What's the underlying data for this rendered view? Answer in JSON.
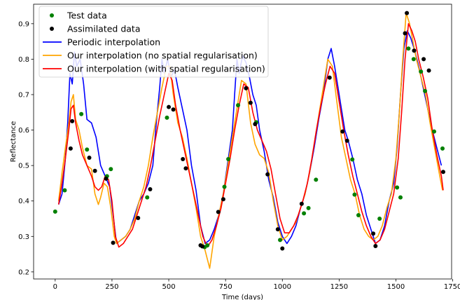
{
  "chart_data": {
    "type": "line",
    "xlabel": "Time (days)",
    "ylabel": "Reflectance",
    "xlim": [
      -95,
      1745
    ],
    "ylim": [
      0.18,
      0.955
    ],
    "xticks": [
      0,
      250,
      500,
      750,
      1000,
      1250,
      1500,
      1750
    ],
    "yticks": [
      0.2,
      0.3,
      0.4,
      0.5,
      0.6,
      0.7,
      0.8,
      0.9
    ],
    "xtick_labels": [
      "0",
      "250",
      "500",
      "750",
      "1000",
      "1250",
      "1500",
      "1750"
    ],
    "ytick_labels": [
      "0.2",
      "0.3",
      "0.4",
      "0.5",
      "0.6",
      "0.7",
      "0.8",
      "0.9"
    ],
    "legend_position": "top-left",
    "series": [
      {
        "name": "Test data",
        "kind": "scatter",
        "color": "#008000",
        "x": [
          0,
          42,
          115,
          140,
          228,
          245,
          405,
          492,
          658,
          670,
          745,
          762,
          805,
          885,
          990,
          1095,
          1115,
          1148,
          1308,
          1318,
          1335,
          1428,
          1505,
          1520,
          1555,
          1578,
          1610,
          1628,
          1668,
          1705
        ],
        "y": [
          0.37,
          0.43,
          0.645,
          0.545,
          0.47,
          0.49,
          0.41,
          0.635,
          0.27,
          0.275,
          0.44,
          0.518,
          0.67,
          0.622,
          0.29,
          0.365,
          0.38,
          0.46,
          0.517,
          0.418,
          0.36,
          0.35,
          0.438,
          0.41,
          0.83,
          0.8,
          0.765,
          0.71,
          0.596,
          0.548
        ]
      },
      {
        "name": "Assimilated data",
        "kind": "scatter",
        "color": "#000000",
        "x": [
          68,
          75,
          150,
          175,
          224,
          255,
          365,
          418,
          500,
          520,
          562,
          575,
          640,
          648,
          718,
          740,
          840,
          860,
          880,
          935,
          980,
          1000,
          1085,
          1208,
          1265,
          1285,
          1400,
          1410,
          1540,
          1548,
          1580,
          1622,
          1645,
          1708
        ],
        "y": [
          0.548,
          0.625,
          0.522,
          0.485,
          0.463,
          0.282,
          0.352,
          0.433,
          0.665,
          0.658,
          0.518,
          0.492,
          0.275,
          0.272,
          0.369,
          0.405,
          0.718,
          0.677,
          0.617,
          0.475,
          0.32,
          0.266,
          0.392,
          0.748,
          0.596,
          0.57,
          0.308,
          0.273,
          0.873,
          0.93,
          0.824,
          0.8,
          0.768,
          0.482
        ]
      },
      {
        "name": "Periodic interpolation",
        "kind": "line",
        "color": "#0000ff",
        "x": [
          15,
          30,
          45,
          55,
          65,
          75,
          85,
          95,
          110,
          125,
          140,
          160,
          180,
          200,
          220,
          240,
          255,
          270,
          290,
          310,
          330,
          350,
          370,
          390,
          410,
          430,
          445,
          460,
          470,
          480,
          495,
          510,
          525,
          540,
          560,
          580,
          600,
          620,
          640,
          660,
          680,
          700,
          720,
          740,
          760,
          780,
          790,
          800,
          810,
          825,
          840,
          855,
          870,
          885,
          900,
          920,
          940,
          960,
          980,
          1000,
          1020,
          1040,
          1060,
          1080,
          1100,
          1120,
          1140,
          1160,
          1180,
          1200,
          1215,
          1230,
          1245,
          1260,
          1275,
          1290,
          1310,
          1330,
          1350,
          1370,
          1390,
          1410,
          1430,
          1450,
          1470,
          1490,
          1505,
          1520,
          1535,
          1550,
          1565,
          1580,
          1600,
          1620,
          1640,
          1660,
          1680,
          1700
        ],
        "y": [
          0.39,
          0.42,
          0.52,
          0.62,
          0.76,
          0.73,
          0.82,
          0.78,
          0.8,
          0.73,
          0.63,
          0.62,
          0.58,
          0.5,
          0.47,
          0.44,
          0.36,
          0.28,
          0.29,
          0.3,
          0.32,
          0.36,
          0.4,
          0.42,
          0.45,
          0.5,
          0.62,
          0.72,
          0.8,
          0.76,
          0.8,
          0.75,
          0.77,
          0.72,
          0.66,
          0.6,
          0.5,
          0.43,
          0.33,
          0.28,
          0.29,
          0.32,
          0.36,
          0.42,
          0.51,
          0.6,
          0.7,
          0.8,
          0.76,
          0.81,
          0.79,
          0.75,
          0.7,
          0.67,
          0.6,
          0.54,
          0.46,
          0.41,
          0.34,
          0.3,
          0.28,
          0.3,
          0.33,
          0.38,
          0.42,
          0.48,
          0.55,
          0.63,
          0.7,
          0.8,
          0.83,
          0.78,
          0.72,
          0.66,
          0.6,
          0.57,
          0.52,
          0.46,
          0.42,
          0.36,
          0.32,
          0.28,
          0.29,
          0.33,
          0.4,
          0.45,
          0.55,
          0.7,
          0.83,
          0.88,
          0.86,
          0.83,
          0.78,
          0.72,
          0.66,
          0.6,
          0.55,
          0.5
        ]
      },
      {
        "name": "Our interpolation (no spatial regularisation)",
        "kind": "line",
        "color": "#ffa500",
        "x": [
          15,
          30,
          45,
          60,
          70,
          80,
          90,
          105,
          120,
          140,
          160,
          175,
          190,
          200,
          215,
          230,
          245,
          260,
          270,
          290,
          310,
          330,
          350,
          370,
          390,
          410,
          430,
          450,
          470,
          490,
          505,
          520,
          540,
          560,
          580,
          600,
          620,
          640,
          660,
          680,
          700,
          720,
          740,
          760,
          780,
          800,
          820,
          840,
          860,
          880,
          900,
          920,
          940,
          960,
          980,
          1000,
          1020,
          1040,
          1060,
          1080,
          1100,
          1120,
          1140,
          1160,
          1180,
          1200,
          1220,
          1240,
          1260,
          1280,
          1300,
          1320,
          1340,
          1360,
          1380,
          1400,
          1420,
          1440,
          1460,
          1480,
          1500,
          1515,
          1530,
          1545,
          1560,
          1575,
          1590,
          1610,
          1630,
          1650,
          1670,
          1690,
          1705
        ],
        "y": [
          0.4,
          0.48,
          0.55,
          0.62,
          0.68,
          0.7,
          0.63,
          0.6,
          0.55,
          0.5,
          0.49,
          0.42,
          0.39,
          0.41,
          0.45,
          0.44,
          0.38,
          0.3,
          0.28,
          0.29,
          0.3,
          0.32,
          0.35,
          0.4,
          0.44,
          0.5,
          0.58,
          0.65,
          0.72,
          0.78,
          0.78,
          0.7,
          0.62,
          0.58,
          0.52,
          0.45,
          0.38,
          0.3,
          0.26,
          0.21,
          0.3,
          0.36,
          0.42,
          0.5,
          0.58,
          0.66,
          0.74,
          0.73,
          0.62,
          0.56,
          0.53,
          0.52,
          0.48,
          0.4,
          0.33,
          0.29,
          0.3,
          0.32,
          0.34,
          0.38,
          0.42,
          0.48,
          0.56,
          0.64,
          0.72,
          0.8,
          0.78,
          0.68,
          0.58,
          0.52,
          0.46,
          0.42,
          0.36,
          0.32,
          0.3,
          0.29,
          0.3,
          0.33,
          0.38,
          0.42,
          0.52,
          0.65,
          0.8,
          0.93,
          0.9,
          0.85,
          0.8,
          0.75,
          0.7,
          0.62,
          0.55,
          0.48,
          0.43
        ]
      },
      {
        "name": "Our interpolation (with spatial regularisation)",
        "kind": "line",
        "color": "#ff0000",
        "x": [
          15,
          30,
          45,
          60,
          70,
          80,
          90,
          105,
          120,
          140,
          160,
          175,
          190,
          205,
          220,
          235,
          250,
          265,
          280,
          300,
          320,
          340,
          360,
          380,
          400,
          420,
          440,
          460,
          480,
          500,
          515,
          530,
          550,
          570,
          590,
          610,
          630,
          650,
          670,
          690,
          710,
          730,
          750,
          770,
          790,
          810,
          830,
          850,
          870,
          890,
          910,
          930,
          950,
          970,
          990,
          1010,
          1030,
          1050,
          1070,
          1090,
          1110,
          1130,
          1150,
          1170,
          1190,
          1210,
          1230,
          1250,
          1270,
          1290,
          1310,
          1330,
          1350,
          1370,
          1390,
          1410,
          1430,
          1450,
          1470,
          1490,
          1510,
          1525,
          1540,
          1555,
          1570,
          1585,
          1600,
          1620,
          1640,
          1660,
          1680,
          1700,
          1708
        ],
        "y": [
          0.39,
          0.45,
          0.52,
          0.6,
          0.66,
          0.67,
          0.62,
          0.57,
          0.53,
          0.5,
          0.47,
          0.44,
          0.43,
          0.44,
          0.47,
          0.46,
          0.4,
          0.3,
          0.27,
          0.28,
          0.3,
          0.32,
          0.36,
          0.4,
          0.44,
          0.5,
          0.57,
          0.64,
          0.7,
          0.76,
          0.74,
          0.67,
          0.6,
          0.54,
          0.48,
          0.42,
          0.36,
          0.3,
          0.27,
          0.29,
          0.33,
          0.38,
          0.45,
          0.52,
          0.6,
          0.67,
          0.73,
          0.72,
          0.65,
          0.6,
          0.57,
          0.54,
          0.49,
          0.42,
          0.35,
          0.31,
          0.31,
          0.33,
          0.36,
          0.4,
          0.45,
          0.52,
          0.6,
          0.67,
          0.73,
          0.78,
          0.76,
          0.68,
          0.6,
          0.53,
          0.47,
          0.42,
          0.37,
          0.33,
          0.3,
          0.28,
          0.29,
          0.32,
          0.37,
          0.42,
          0.52,
          0.65,
          0.8,
          0.9,
          0.88,
          0.85,
          0.8,
          0.75,
          0.69,
          0.6,
          0.53,
          0.47,
          0.43
        ]
      }
    ]
  }
}
